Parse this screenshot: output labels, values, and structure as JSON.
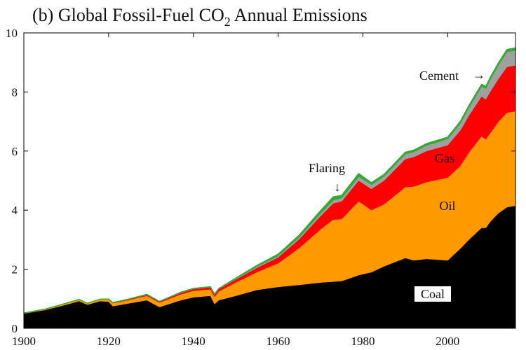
{
  "chart_data": {
    "type": "area",
    "stacked": true,
    "title": {
      "prefix": "(b)  Global Fossil-Fuel CO",
      "subscript": "2",
      "suffix": " Annual Emissions"
    },
    "xlim": [
      1900,
      2016
    ],
    "ylim": [
      0,
      10
    ],
    "x_ticks": [
      1900,
      1920,
      1940,
      1960,
      1980,
      2000
    ],
    "y_ticks": [
      0,
      2,
      4,
      6,
      8,
      10
    ],
    "x_tick_labels": [
      "1900",
      "1920",
      "1940",
      "1960",
      "1980",
      "2000"
    ],
    "y_tick_labels": [
      "0",
      "2",
      "4",
      "6",
      "8",
      "10"
    ],
    "grid": false,
    "x": [
      1900,
      1905,
      1910,
      1913,
      1915,
      1918,
      1920,
      1921,
      1925,
      1929,
      1932,
      1937,
      1940,
      1944,
      1945,
      1946,
      1950,
      1955,
      1960,
      1965,
      1970,
      1973,
      1975,
      1979,
      1982,
      1985,
      1990,
      1992,
      1995,
      2000,
      2003,
      2005,
      2008,
      2009,
      2010,
      2012,
      2014,
      2016
    ],
    "series": [
      {
        "name": "Coal",
        "color": "#000000",
        "values": [
          0.5,
          0.62,
          0.8,
          0.92,
          0.8,
          0.92,
          0.9,
          0.75,
          0.85,
          0.95,
          0.72,
          0.95,
          1.05,
          1.1,
          0.82,
          0.95,
          1.1,
          1.3,
          1.4,
          1.47,
          1.55,
          1.58,
          1.6,
          1.8,
          1.9,
          2.1,
          2.38,
          2.3,
          2.35,
          2.3,
          2.7,
          3.0,
          3.4,
          3.4,
          3.6,
          3.9,
          4.1,
          4.15
        ]
      },
      {
        "name": "Oil",
        "color": "#ff9900",
        "values": [
          0.02,
          0.03,
          0.05,
          0.06,
          0.05,
          0.07,
          0.08,
          0.1,
          0.12,
          0.15,
          0.15,
          0.2,
          0.22,
          0.22,
          0.25,
          0.3,
          0.45,
          0.6,
          0.8,
          1.25,
          1.8,
          2.1,
          2.1,
          2.5,
          2.1,
          2.1,
          2.4,
          2.5,
          2.6,
          2.8,
          2.8,
          2.95,
          3.1,
          3.0,
          3.0,
          3.1,
          3.2,
          3.2
        ]
      },
      {
        "name": "Gas",
        "color": "#ff0000",
        "values": [
          0.0,
          0.0,
          0.0,
          0.0,
          0.0,
          0.0,
          0.0,
          0.01,
          0.02,
          0.03,
          0.03,
          0.05,
          0.06,
          0.07,
          0.07,
          0.08,
          0.1,
          0.15,
          0.2,
          0.3,
          0.45,
          0.55,
          0.6,
          0.7,
          0.72,
          0.8,
          0.95,
          1.0,
          1.05,
          1.1,
          1.2,
          1.25,
          1.35,
          1.35,
          1.4,
          1.45,
          1.55,
          1.55
        ]
      },
      {
        "name": "Cement",
        "color": "#a0a0a0",
        "values": [
          0.0,
          0.0,
          0.0,
          0.0,
          0.0,
          0.0,
          0.01,
          0.01,
          0.01,
          0.02,
          0.01,
          0.02,
          0.02,
          0.02,
          0.02,
          0.02,
          0.03,
          0.05,
          0.06,
          0.08,
          0.1,
          0.12,
          0.12,
          0.15,
          0.15,
          0.16,
          0.18,
          0.18,
          0.2,
          0.22,
          0.25,
          0.28,
          0.35,
          0.38,
          0.42,
          0.48,
          0.52,
          0.52
        ]
      },
      {
        "name": "Flaring",
        "color": "#33aa33",
        "values": [
          0.0,
          0.0,
          0.0,
          0.0,
          0.0,
          0.0,
          0.0,
          0.0,
          0.0,
          0.0,
          0.0,
          0.0,
          0.0,
          0.0,
          0.0,
          0.0,
          0.02,
          0.03,
          0.05,
          0.06,
          0.08,
          0.1,
          0.08,
          0.09,
          0.06,
          0.05,
          0.05,
          0.05,
          0.05,
          0.05,
          0.06,
          0.06,
          0.06,
          0.06,
          0.06,
          0.06,
          0.07,
          0.07
        ]
      }
    ],
    "annotations": {
      "coal": "Coal",
      "oil": "Oil",
      "gas": "Gas",
      "cement": "Cement",
      "flaring": "Flaring"
    },
    "arrow_glyphs": {
      "right": "→",
      "down": "↓"
    }
  }
}
